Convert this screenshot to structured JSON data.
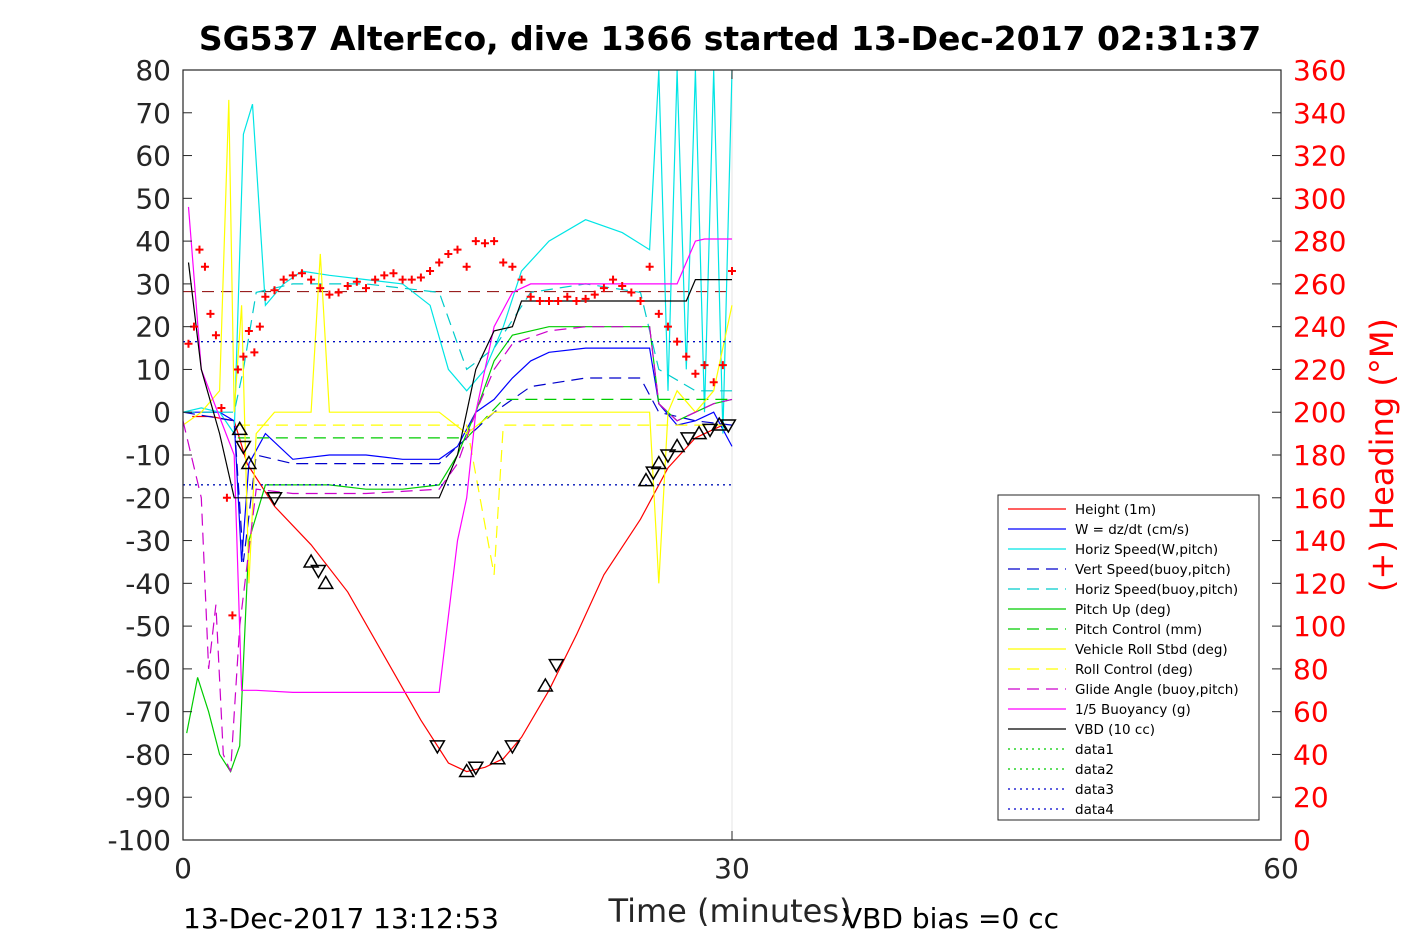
{
  "chart_data": {
    "type": "line",
    "title": "SG537 AlterEco, dive 1366 started 13-Dec-2017 02:31:37",
    "xlabel": "Time (minutes)",
    "ylabel": "",
    "y2label": "(+) Heading (°M)",
    "xlim": [
      0,
      60
    ],
    "ylim": [
      -100,
      80
    ],
    "y2lim": [
      0,
      360
    ],
    "x_ticks": [
      "0",
      "30",
      "60"
    ],
    "y_ticks": [
      "80",
      "70",
      "60",
      "50",
      "40",
      "30",
      "20",
      "10",
      "0",
      "-10",
      "-20",
      "-30",
      "-40",
      "-50",
      "-60",
      "-70",
      "-80",
      "-90",
      "-100"
    ],
    "y2_ticks": [
      "360",
      "340",
      "320",
      "300",
      "280",
      "260",
      "240",
      "220",
      "200",
      "180",
      "160",
      "140",
      "120",
      "100",
      "80",
      "60",
      "40",
      "20",
      "0"
    ],
    "footer_left": "13-Dec-2017 13:12:53",
    "footer_right": "VBD bias =0 cc",
    "legend_position": "lower-right",
    "grid": false,
    "series": [
      {
        "name": "Height (1m)",
        "color": "#ff0000",
        "style": "solid",
        "x": [
          0.5,
          1.5,
          2.8,
          3.5,
          5,
          7,
          9,
          11,
          13,
          14.5,
          15.5,
          16.5,
          17.5,
          18.5,
          20,
          21.5,
          23,
          25,
          26.5,
          28,
          29.5
        ],
        "y": [
          -1,
          -1,
          -2,
          -12,
          -22,
          -31,
          -42,
          -57,
          -72,
          -82,
          -84,
          -83,
          -81,
          -76,
          -65,
          -52,
          -38,
          -25,
          -13,
          -6,
          -3
        ]
      },
      {
        "name": "W = dz/dt (cm/s)",
        "color": "#0000ff",
        "style": "solid",
        "x": [
          0,
          1,
          2,
          2.8,
          3.2,
          3.6,
          4.5,
          6,
          8,
          10,
          12,
          14,
          15,
          16,
          17,
          18,
          19,
          20,
          22,
          24,
          25.5,
          26,
          27,
          28,
          29,
          30
        ],
        "y": [
          0,
          0,
          0,
          -2,
          -35,
          -12,
          -5,
          -11,
          -10,
          -10,
          -11,
          -11,
          -8,
          0,
          3,
          8,
          12,
          14,
          15,
          15,
          15,
          2,
          -3,
          -2,
          0,
          -8
        ]
      },
      {
        "name": "Horiz Speed(W,pitch)",
        "color": "#00e5e5",
        "style": "solid",
        "x": [
          0,
          1,
          2,
          2.8,
          3.3,
          3.8,
          4.5,
          5.5,
          6.5,
          8,
          10,
          12,
          13.5,
          14.5,
          15.5,
          16.5,
          17.5,
          18.5,
          20,
          22,
          24,
          25.5,
          26,
          26.5,
          27,
          27.5,
          28,
          28.5,
          29,
          29.5,
          30
        ],
        "y": [
          0,
          1,
          0,
          -5,
          65,
          72,
          25,
          30,
          33,
          32,
          31,
          30,
          25,
          10,
          5,
          10,
          20,
          33,
          40,
          45,
          42,
          38,
          80,
          5,
          80,
          10,
          80,
          0,
          80,
          -5,
          80
        ]
      },
      {
        "name": "Vert Speed(buoy,pitch)",
        "color": "#0000cc",
        "style": "dashed",
        "x": [
          0,
          2.8,
          3.3,
          4,
          6,
          10,
          14,
          15.5,
          17,
          19,
          22,
          25,
          26,
          28,
          30
        ],
        "y": [
          0,
          -2,
          -35,
          -10,
          -12,
          -12,
          -12,
          -6,
          0,
          6,
          8,
          8,
          0,
          -2,
          -3
        ]
      },
      {
        "name": "Horiz Speed(buoy,pitch)",
        "color": "#00cccc",
        "style": "dashed",
        "x": [
          0,
          2.8,
          3.3,
          4,
          6,
          10,
          14,
          15.5,
          17,
          19,
          22,
          25,
          26,
          28,
          30
        ],
        "y": [
          0,
          0,
          10,
          28,
          30,
          30,
          28,
          10,
          15,
          28,
          30,
          28,
          10,
          5,
          5
        ]
      },
      {
        "name": "Pitch Up (deg)",
        "color": "#00cc00",
        "style": "solid",
        "x": [
          0.2,
          0.8,
          1.4,
          2,
          2.6,
          3.1,
          3.6,
          4.5,
          6,
          8,
          10,
          12,
          14,
          15,
          16,
          17,
          18,
          20,
          22,
          24,
          25.5,
          26,
          27,
          28,
          29,
          30
        ],
        "y": [
          -75,
          -62,
          -70,
          -80,
          -84,
          -78,
          -30,
          -17,
          -17,
          -17,
          -18,
          -18,
          -17,
          -10,
          0,
          12,
          18,
          20,
          20,
          20,
          20,
          2,
          -2,
          0,
          2,
          3
        ]
      },
      {
        "name": "Pitch Control (mm)",
        "color": "#00cc00",
        "style": "dashed",
        "x": [
          3,
          3.5,
          14,
          15.5,
          17.5,
          25.5,
          26.5,
          30
        ],
        "y": [
          -6,
          -6,
          -6,
          -6,
          3,
          3,
          3,
          3
        ]
      },
      {
        "name": "Vehicle Roll Stbd (deg)",
        "color": "#ffff00",
        "style": "solid",
        "x": [
          0,
          1,
          2,
          2.5,
          2.8,
          3.2,
          3.6,
          4,
          5,
          6,
          7,
          7.5,
          8,
          10,
          12,
          14,
          15.5,
          17,
          18,
          20,
          22,
          24,
          25.5,
          26,
          26.5,
          27,
          28,
          29,
          30
        ],
        "y": [
          -3,
          0,
          5,
          73,
          0,
          25,
          -40,
          -5,
          0,
          0,
          0,
          37,
          0,
          0,
          0,
          0,
          -5,
          0,
          0,
          0,
          0,
          0,
          0,
          -40,
          0,
          5,
          0,
          5,
          25
        ]
      },
      {
        "name": "Roll Control (deg)",
        "color": "#ffff00",
        "style": "dashed",
        "x": [
          3,
          3.5,
          14,
          15.5,
          17,
          17.5,
          18,
          25.5,
          26,
          27,
          30
        ],
        "y": [
          -3,
          -3,
          -3,
          -3,
          -38,
          -3,
          -3,
          -3,
          -3,
          -3,
          -3
        ]
      },
      {
        "name": "Glide Angle (buoy,pitch)",
        "color": "#cc00cc",
        "style": "dashed",
        "x": [
          0,
          1,
          1.4,
          1.8,
          2.2,
          2.6,
          3.1,
          4,
          6,
          10,
          14,
          15,
          16,
          17,
          18,
          20,
          22,
          25.5,
          26,
          27,
          28,
          29,
          30
        ],
        "y": [
          -2,
          -20,
          -60,
          -45,
          -80,
          -84,
          -50,
          -18,
          -19,
          -19,
          -18,
          -12,
          0,
          10,
          16,
          19,
          20,
          20,
          2,
          -2,
          0,
          2,
          3
        ]
      },
      {
        "name": "1/5 Buoyancy (g)",
        "color": "#ff00ff",
        "style": "solid",
        "x": [
          0.3,
          1,
          2.8,
          3.2,
          4,
          6,
          10,
          14,
          15,
          15.5,
          16,
          17,
          18,
          19,
          25.5,
          26,
          27,
          28,
          28.5,
          30
        ],
        "y": [
          48,
          10,
          -10,
          -65,
          -65,
          -65.5,
          -65.5,
          -65.5,
          -30,
          -20,
          0,
          20,
          28,
          30,
          30,
          30,
          30,
          40,
          40.5,
          40.5
        ]
      },
      {
        "name": "VBD (10 cc)",
        "color": "#000000",
        "style": "solid",
        "x": [
          0.3,
          1,
          2,
          2.8,
          3.5,
          10,
          14,
          15,
          15.5,
          16,
          17,
          18,
          18.5,
          27.5,
          28,
          30
        ],
        "y": [
          35,
          10,
          -5,
          -20,
          -20,
          -20,
          -20,
          -10,
          0,
          10,
          19,
          20,
          26,
          26,
          31,
          31
        ]
      },
      {
        "name": "data1",
        "color": "#00cc00",
        "style": "dotted",
        "x": [
          0,
          30
        ],
        "y": [
          16.5,
          16.5
        ]
      },
      {
        "name": "data2",
        "color": "#00cc00",
        "style": "dotted",
        "x": [
          0,
          30
        ],
        "y": [
          -17,
          -17
        ]
      },
      {
        "name": "data3",
        "color": "#0000cc",
        "style": "dotted",
        "x": [
          0,
          30
        ],
        "y": [
          16.5,
          16.5
        ]
      },
      {
        "name": "data4",
        "color": "#0000cc",
        "style": "dotted",
        "x": [
          0,
          30
        ],
        "y": [
          -17,
          -17
        ]
      }
    ],
    "heading_points": {
      "axis": "right",
      "marker": "plus",
      "color": "#ff0000",
      "x": [
        0.3,
        0.6,
        0.9,
        1.2,
        1.5,
        1.8,
        2.1,
        2.4,
        2.7,
        3,
        3.3,
        3.6,
        3.9,
        4.2,
        4.5,
        5,
        5.5,
        6,
        6.5,
        7,
        7.5,
        8,
        8.5,
        9,
        9.5,
        10,
        10.5,
        11,
        11.5,
        12,
        12.5,
        13,
        13.5,
        14,
        14.5,
        15,
        15.5,
        16,
        16.5,
        17,
        17.5,
        18,
        18.5,
        19,
        19.5,
        20,
        20.5,
        21,
        21.5,
        22,
        22.5,
        23,
        23.5,
        24,
        24.5,
        25,
        25.5,
        26,
        26.5,
        27,
        27.5,
        28,
        28.5,
        29,
        29.5,
        30
      ],
      "y": [
        232,
        240,
        276,
        268,
        246,
        236,
        202,
        160,
        105,
        220,
        226,
        238,
        228,
        240,
        254,
        257,
        262,
        264,
        265,
        262,
        258,
        255,
        256,
        259,
        261,
        258,
        262,
        264,
        265,
        262,
        262,
        263,
        266,
        270,
        274,
        276,
        268,
        280,
        279,
        280,
        270,
        268,
        262,
        254,
        252,
        252,
        252,
        254,
        252,
        253,
        255,
        258,
        262,
        259,
        256,
        252,
        268,
        246,
        240,
        233,
        226,
        218,
        222,
        214,
        222,
        266
      ]
    },
    "depth_markers": {
      "marker": "triangle",
      "x": [
        3.1,
        3.3,
        3.6,
        5,
        7,
        7.4,
        7.8,
        13.9,
        15.5,
        16,
        17.2,
        18,
        19.8,
        20.4,
        25.3,
        25.7,
        26,
        26.5,
        27,
        27.6,
        28.2,
        28.8,
        29.3,
        29.8
      ],
      "y": [
        -4,
        -8,
        -12,
        -20,
        -35,
        -37,
        -40,
        -78,
        -84,
        -83,
        -81,
        -78,
        -64,
        -59,
        -16,
        -14,
        -12,
        -10,
        -8,
        -6,
        -5,
        -4,
        -3,
        -3
      ]
    }
  }
}
